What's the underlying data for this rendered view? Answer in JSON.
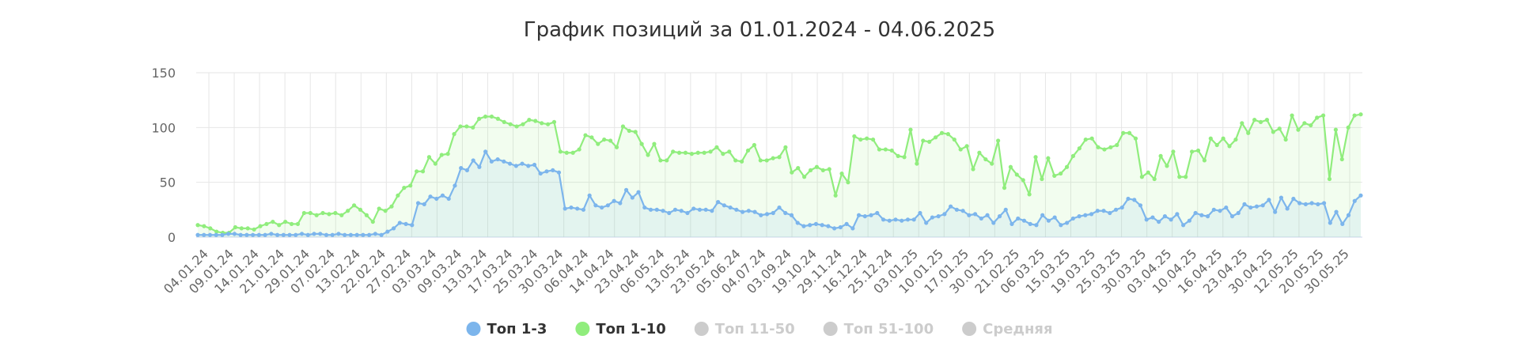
{
  "chart_data": {
    "type": "line",
    "title": "График позиций за 01.01.2024 - 04.06.2025",
    "ylim": [
      0,
      150
    ],
    "yticks": [
      0,
      50,
      100,
      150
    ],
    "grid": true,
    "legend_position": "bottom-center",
    "x_labels": [
      "04.01.24",
      "09.01.24",
      "14.01.24",
      "21.01.24",
      "29.01.24",
      "07.02.24",
      "13.02.24",
      "22.02.24",
      "27.02.24",
      "03.03.24",
      "09.03.24",
      "13.03.24",
      "17.03.24",
      "25.03.24",
      "30.03.24",
      "06.04.24",
      "14.04.24",
      "23.04.24",
      "06.05.24",
      "13.05.24",
      "23.05.24",
      "05.06.24",
      "04.07.24",
      "03.09.24",
      "19.10.24",
      "29.11.24",
      "16.12.24",
      "25.12.24",
      "03.01.25",
      "10.01.25",
      "17.01.25",
      "30.01.25",
      "21.02.25",
      "06.03.25",
      "15.03.25",
      "19.03.25",
      "25.03.25",
      "30.03.25",
      "03.04.25",
      "10.04.25",
      "16.04.25",
      "23.04.25",
      "30.04.25",
      "12.05.25",
      "20.05.25",
      "30.05.25"
    ],
    "series": [
      {
        "name": "Топ 1-3",
        "color": "#7cb5ec",
        "visible": true,
        "values": [
          2,
          2,
          2,
          2,
          2,
          3,
          3,
          2,
          2,
          2,
          2,
          2,
          3,
          2,
          2,
          2,
          2,
          3,
          2,
          3,
          3,
          2,
          2,
          3,
          2,
          2,
          2,
          2,
          2,
          3,
          2,
          5,
          8,
          13,
          12,
          11,
          31,
          30,
          37,
          35,
          38,
          35,
          47,
          63,
          61,
          70,
          64,
          78,
          69,
          71,
          69,
          67,
          65,
          67,
          65,
          66,
          58,
          60,
          61,
          59,
          26,
          27,
          26,
          25,
          38,
          29,
          27,
          29,
          33,
          31,
          43,
          36,
          41,
          27,
          25,
          25,
          24,
          22,
          25,
          24,
          22,
          26,
          25,
          25,
          24,
          32,
          29,
          27,
          25,
          23,
          24,
          23,
          20,
          21,
          22,
          27,
          22,
          20,
          13,
          10,
          11,
          12,
          11,
          10,
          8,
          9,
          12,
          8,
          20,
          19,
          20,
          22,
          16,
          15,
          16,
          15,
          16,
          16,
          22,
          13,
          18,
          19,
          21,
          28,
          25,
          24,
          20,
          21,
          17,
          20,
          13,
          19,
          25,
          12,
          17,
          15,
          12,
          11,
          20,
          15,
          18,
          11,
          13,
          17,
          19,
          20,
          21,
          24,
          24,
          22,
          25,
          27,
          35,
          34,
          29,
          16,
          18,
          14,
          19,
          16,
          21,
          11,
          15,
          22,
          20,
          19,
          25,
          24,
          27,
          19,
          22,
          30,
          27,
          28,
          29,
          34,
          23,
          36,
          26,
          35,
          31,
          30,
          31,
          30,
          31,
          13,
          23,
          12,
          20,
          33,
          38
        ]
      },
      {
        "name": "Топ 1-10",
        "color": "#90ed7d",
        "visible": true,
        "values": [
          11,
          10,
          8,
          5,
          4,
          4,
          9,
          8,
          8,
          7,
          10,
          12,
          14,
          11,
          14,
          12,
          12,
          22,
          22,
          20,
          22,
          21,
          22,
          20,
          24,
          29,
          25,
          20,
          14,
          26,
          24,
          28,
          38,
          45,
          47,
          60,
          60,
          73,
          67,
          75,
          76,
          94,
          101,
          101,
          100,
          108,
          110,
          110,
          108,
          105,
          103,
          101,
          103,
          107,
          106,
          104,
          103,
          105,
          78,
          77,
          77,
          80,
          93,
          91,
          85,
          89,
          88,
          82,
          101,
          97,
          96,
          85,
          75,
          85,
          70,
          70,
          78,
          77,
          77,
          76,
          77,
          77,
          78,
          82,
          76,
          78,
          70,
          69,
          79,
          84,
          70,
          70,
          72,
          73,
          82,
          59,
          63,
          55,
          61,
          64,
          61,
          62,
          38,
          58,
          50,
          92,
          89,
          90,
          89,
          80,
          80,
          79,
          74,
          73,
          98,
          67,
          88,
          87,
          91,
          95,
          94,
          89,
          80,
          83,
          62,
          77,
          71,
          67,
          88,
          45,
          64,
          57,
          52,
          39,
          73,
          53,
          72,
          56,
          58,
          64,
          74,
          81,
          89,
          90,
          82,
          80,
          82,
          84,
          95,
          95,
          90,
          55,
          59,
          53,
          74,
          65,
          78,
          55,
          55,
          78,
          79,
          70,
          90,
          84,
          90,
          83,
          89,
          104,
          95,
          107,
          105,
          107,
          96,
          99,
          89,
          111,
          98,
          104,
          102,
          109,
          111,
          53,
          98,
          71,
          100,
          111,
          112
        ]
      },
      {
        "name": "Топ 11-50",
        "color": "#cccccc",
        "visible": false,
        "values": []
      },
      {
        "name": "Топ 51-100",
        "color": "#cccccc",
        "visible": false,
        "values": []
      },
      {
        "name": "Средняя",
        "color": "#cccccc",
        "visible": false,
        "values": []
      }
    ]
  }
}
